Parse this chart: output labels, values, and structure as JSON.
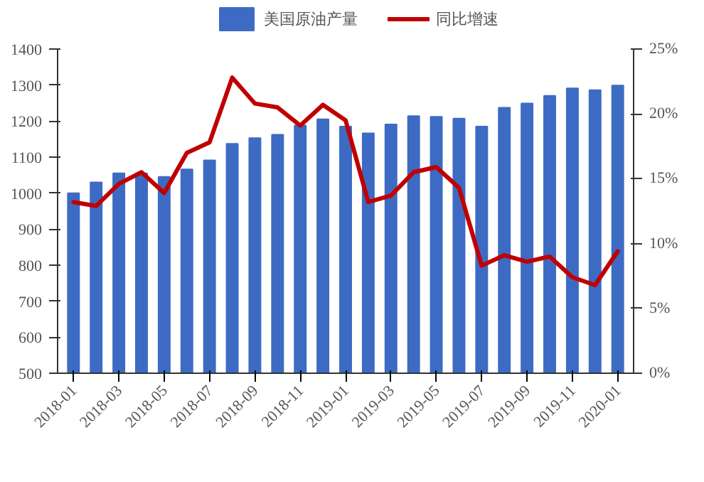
{
  "chart_data": {
    "type": "bar",
    "categories": [
      "2018-01",
      null,
      "2018-03",
      null,
      "2018-05",
      null,
      "2018-07",
      null,
      "2018-09",
      null,
      "2018-11",
      null,
      "2019-01",
      null,
      "2019-03",
      null,
      "2019-05",
      null,
      "2019-07",
      null,
      "2019-09",
      null,
      "2019-11",
      null,
      "2020-01"
    ],
    "series": [
      {
        "name": "美国原油产量",
        "type": "bar",
        "color": "#3d6bc4",
        "values": [
          1000,
          1030,
          1055,
          1055,
          1045,
          1066,
          1091,
          1137,
          1153,
          1162,
          1188,
          1205,
          1185,
          1166,
          1191,
          1214,
          1212,
          1207,
          1185,
          1237,
          1249,
          1270,
          1291,
          1286,
          1299
        ]
      },
      {
        "name": "同比增速",
        "type": "line",
        "axis": "y2",
        "color": "#c00000",
        "line_style": "solid",
        "values": [
          13.2,
          12.9,
          14.6,
          15.5,
          13.9,
          17.0,
          17.8,
          22.8,
          20.8,
          20.5,
          19.1,
          20.7,
          19.5,
          13.2,
          13.7,
          15.5,
          15.9,
          14.3,
          8.3,
          9.1,
          8.6,
          9.0,
          7.4,
          6.8,
          9.4
        ]
      }
    ],
    "ylim": [
      500,
      1400
    ],
    "yticks": [
      500,
      600,
      700,
      800,
      900,
      1000,
      1100,
      1200,
      1300,
      1400
    ],
    "y2lim": [
      0,
      25
    ],
    "y2ticks": [
      {
        "value": 0,
        "label": "0%"
      },
      {
        "value": 5,
        "label": "5%"
      },
      {
        "value": 10,
        "label": "10%"
      },
      {
        "value": 15,
        "label": "15%"
      },
      {
        "value": 20,
        "label": "20%"
      },
      {
        "value": 25,
        "label": "25%"
      }
    ],
    "legend": "top",
    "marker": "none"
  }
}
